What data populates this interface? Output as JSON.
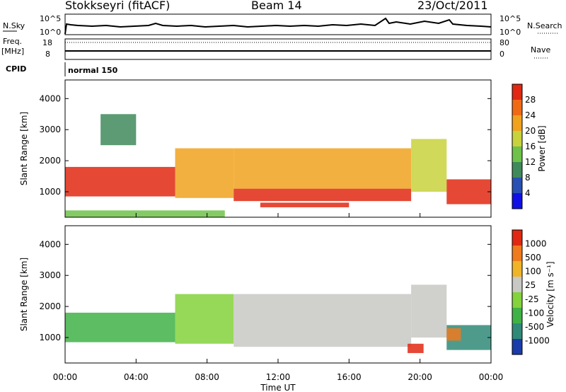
{
  "header": {
    "station": "Stokkseyri (fitACF)",
    "beam": "Beam 14",
    "date": "23/Oct/2011"
  },
  "strip_labels": {
    "nsky": "N.Sky",
    "freq": "Freq.",
    "freq_unit": "[MHz]",
    "cpid": "CPID",
    "nsearch": "N.Search",
    "nave": "Nave",
    "noise_axis_ticks": [
      "10^5",
      "10^0"
    ],
    "freq_ticks": [
      "18",
      "8"
    ],
    "nave_ticks": [
      "80",
      "0"
    ],
    "cpid_value": "normal 150"
  },
  "chart_data": [
    {
      "type": "heatmap",
      "panel": "power",
      "ylabel": "Slant Range [km]",
      "yticks": [
        "1000",
        "2000",
        "3000",
        "4000"
      ],
      "ylim": [
        180,
        4600
      ],
      "xlim": [
        0,
        24
      ],
      "colorbar_label": "Power [dB]",
      "colorbar_ticks": [
        "4",
        "8",
        "12",
        "16",
        "20",
        "24",
        "28"
      ],
      "colorbar_colors": [
        "#1010e6",
        "#2850b4",
        "#3f8a5a",
        "#6ec24a",
        "#c8d23c",
        "#f0a21e",
        "#f06a14",
        "#e02812"
      ],
      "regions": [
        {
          "t0": 0.0,
          "t1": 6.2,
          "r0": 850,
          "r1": 1800,
          "level": 7
        },
        {
          "t0": 6.2,
          "t1": 9.5,
          "r0": 800,
          "r1": 2400,
          "level": 5
        },
        {
          "t0": 9.5,
          "t1": 19.5,
          "r0": 700,
          "r1": 1100,
          "level": 7
        },
        {
          "t0": 9.5,
          "t1": 19.5,
          "r0": 1100,
          "r1": 2400,
          "level": 5
        },
        {
          "t0": 11.0,
          "t1": 16.0,
          "r0": 500,
          "r1": 650,
          "level": 7
        },
        {
          "t0": 19.5,
          "t1": 21.5,
          "r0": 1000,
          "r1": 2700,
          "level": 4
        },
        {
          "t0": 21.5,
          "t1": 24.0,
          "r0": 600,
          "r1": 1400,
          "level": 7
        },
        {
          "t0": 2.0,
          "t1": 4.0,
          "r0": 2500,
          "r1": 3500,
          "level": 2
        },
        {
          "t0": 0.0,
          "t1": 9.0,
          "r0": 180,
          "r1": 400,
          "level": 3
        }
      ]
    },
    {
      "type": "heatmap",
      "panel": "velocity",
      "ylabel": "Slant Range [km]",
      "yticks": [
        "1000",
        "2000",
        "3000",
        "4000"
      ],
      "ylim": [
        180,
        4600
      ],
      "xlim": [
        0,
        24
      ],
      "xticks": [
        "00:00",
        "04:00",
        "08:00",
        "12:00",
        "16:00",
        "20:00",
        "00:00"
      ],
      "xlabel": "Time UT",
      "colorbar_label": "Velocity [m s⁻¹]",
      "colorbar_ticks": [
        "1000",
        "500",
        "100",
        "25",
        "-25",
        "-100",
        "-500",
        "-1000"
      ],
      "colorbar_colors": [
        "#1a3caa",
        "#2f8a78",
        "#3fb246",
        "#84d23c",
        "#c8c8c4",
        "#f0b428",
        "#f07a1e",
        "#e02812"
      ],
      "regions": [
        {
          "t0": 0.0,
          "t1": 6.2,
          "r0": 850,
          "r1": 1800,
          "level": 2
        },
        {
          "t0": 6.2,
          "t1": 9.5,
          "r0": 800,
          "r1": 2400,
          "level": 3
        },
        {
          "t0": 9.5,
          "t1": 19.5,
          "r0": 700,
          "r1": 2400,
          "level": 4
        },
        {
          "t0": 19.5,
          "t1": 21.5,
          "r0": 1000,
          "r1": 2700,
          "level": 4
        },
        {
          "t0": 21.5,
          "t1": 24.0,
          "r0": 600,
          "r1": 1400,
          "level": 1
        },
        {
          "t0": 19.3,
          "t1": 20.2,
          "r0": 500,
          "r1": 800,
          "level": 7
        },
        {
          "t0": 21.5,
          "t1": 22.3,
          "r0": 900,
          "r1": 1300,
          "level": 6
        }
      ]
    }
  ]
}
